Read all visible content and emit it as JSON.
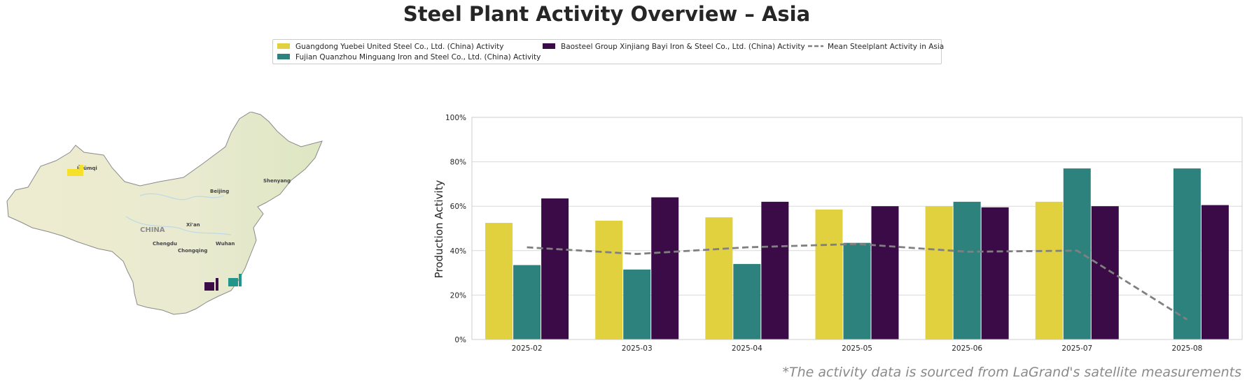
{
  "title": "Steel Plant Activity Overview – Asia",
  "footnote": "*The activity data is sourced from LaGrand's satellite measurements",
  "legend": {
    "items": [
      {
        "label": "Guangdong Yuebei United Steel Co., Ltd. (China) Activity",
        "color": "#e2d13e",
        "kind": "bar"
      },
      {
        "label": "Fujian Quanzhou Minguang Iron and Steel Co., Ltd. (China) Activity",
        "color": "#2e827d",
        "kind": "bar"
      },
      {
        "label": "Baosteel Group Xinjiang Bayi Iron & Steel Co., Ltd. (China) Activity",
        "color": "#3b0b47",
        "kind": "bar"
      },
      {
        "label": "Mean Steelplant Activity in Asia",
        "color": "#808080",
        "kind": "dashed-line"
      }
    ]
  },
  "map": {
    "country_label": "CHINA",
    "city_labels": [
      "Ürümqi",
      "Beijing",
      "Shenyang",
      "Xi'an",
      "Chengdu",
      "Chongqing",
      "Wuhan"
    ],
    "markers": [
      {
        "name": "Guangdong Yuebei United Steel Co., Ltd.",
        "color": "#f5e12a",
        "icon": "factory-icon"
      },
      {
        "name": "Fujian Quanzhou Minguang Iron and Steel Co., Ltd.",
        "color": "#22968a",
        "icon": "factory-icon"
      },
      {
        "name": "Baosteel Group Xinjiang Bayi Iron & Steel Co., Ltd.",
        "color": "#3b0b47",
        "icon": "factory-icon"
      }
    ]
  },
  "chart_data": {
    "type": "bar",
    "title": "",
    "xlabel": "",
    "ylabel": "Production Activity",
    "ylim": [
      0,
      100
    ],
    "y_ticks": [
      "0%",
      "20%",
      "40%",
      "60%",
      "80%",
      "100%"
    ],
    "grid": "horizontal",
    "categories": [
      "2025-02",
      "2025-03",
      "2025-04",
      "2025-05",
      "2025-06",
      "2025-07",
      "2025-08"
    ],
    "series": [
      {
        "name": "Guangdong Yuebei United Steel Co., Ltd. (China) Activity",
        "color": "#e2d13e",
        "values": [
          52.5,
          53.5,
          55,
          58.5,
          60,
          62,
          null
        ]
      },
      {
        "name": "Fujian Quanzhou Minguang Iron and Steel Co., Ltd. (China) Activity",
        "color": "#2e827d",
        "values": [
          33.5,
          31.5,
          34,
          43.5,
          62,
          77,
          77
        ]
      },
      {
        "name": "Baosteel Group Xinjiang Bayi Iron & Steel Co., Ltd. (China) Activity",
        "color": "#3b0b47",
        "values": [
          63.5,
          64,
          62,
          60,
          59.5,
          60,
          60.5
        ]
      }
    ],
    "line": {
      "name": "Mean Steelplant Activity in Asia",
      "color": "#808080",
      "style": "dashed",
      "values": [
        41.5,
        38.5,
        41.5,
        43,
        39.5,
        40,
        9
      ]
    }
  }
}
